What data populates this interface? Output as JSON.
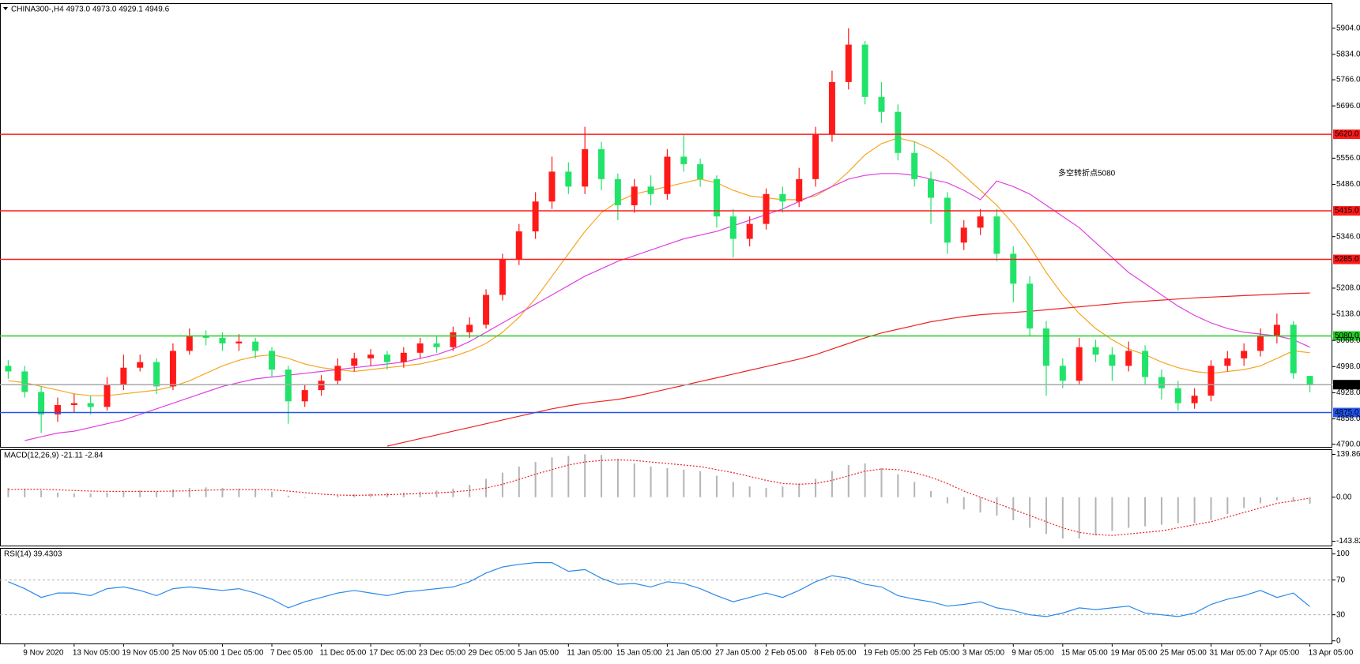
{
  "chart_data": [
    {
      "type": "candlestick",
      "title": "CHINA300-,H4  4973.0 4973.0 4929.1 4949.6",
      "annotation": "多空转折点5080",
      "annotation_color": "#ff1a1a",
      "up_color": "#ff1a1a",
      "down_color": "#22e36a",
      "ylim": [
        4783,
        5969
      ],
      "yticks": [
        {
          "value": 4790,
          "label": "4790.0"
        },
        {
          "value": 4858,
          "label": "4858.0"
        },
        {
          "value": 4928,
          "label": "4928.0"
        },
        {
          "value": 4998,
          "label": "4998.0"
        },
        {
          "value": 5068,
          "label": "5068.0"
        },
        {
          "value": 5138,
          "label": "5138.0"
        },
        {
          "value": 5208,
          "label": "5208.0"
        },
        {
          "value": 5346,
          "label": "5346.0"
        },
        {
          "value": 5486,
          "label": "5486.0"
        },
        {
          "value": 5556,
          "label": "5556.0"
        },
        {
          "value": 5696,
          "label": "5696.0"
        },
        {
          "value": 5766,
          "label": "5766.0"
        },
        {
          "value": 5834,
          "label": "5834.0"
        },
        {
          "value": 5904,
          "label": "5904.0"
        }
      ],
      "levels": [
        {
          "value": 5620,
          "label": "5620.0",
          "color": "#ff1a1a",
          "box": "#ff1a1a"
        },
        {
          "value": 5415,
          "label": "5415.0",
          "color": "#ff1a1a",
          "box": "#ff1a1a"
        },
        {
          "value": 5285,
          "label": "5285.0",
          "color": "#ff1a1a",
          "box": "#ff1a1a"
        },
        {
          "value": 5080,
          "label": "5080.0",
          "color": "#22cc22",
          "box": "#22cc22"
        },
        {
          "value": 4875,
          "label": "4875.0",
          "color": "#2255ee",
          "box": "#2255ee"
        },
        {
          "value": 4949.6,
          "label": "4949.6",
          "color": "#a8a8a8",
          "box": "#000000"
        }
      ],
      "categories": [
        null,
        "9 Nov 2020",
        null,
        null,
        "13 Nov 05:00",
        null,
        null,
        "19 Nov 05:00",
        null,
        null,
        "25 Nov 05:00",
        null,
        null,
        "1 Dec 05:00",
        null,
        null,
        "7 Dec 05:00",
        null,
        null,
        "11 Dec 05:00",
        null,
        null,
        "17 Dec 05:00",
        null,
        null,
        "23 Dec 05:00",
        null,
        null,
        "29 Dec 05:00",
        null,
        null,
        "5 Jan 05:00",
        null,
        null,
        "11 Jan 05:00",
        null,
        null,
        "15 Jan 05:00",
        null,
        null,
        "21 Jan 05:00",
        null,
        null,
        "27 Jan 05:00",
        null,
        null,
        "2 Feb 05:00",
        null,
        null,
        "8 Feb 05:00",
        null,
        null,
        "19 Feb 05:00",
        null,
        null,
        "25 Feb 05:00",
        null,
        null,
        "3 Mar 05:00",
        null,
        null,
        "9 Mar 05:00",
        null,
        null,
        "15 Mar 05:00",
        null,
        null,
        "19 Mar 05:00",
        null,
        null,
        "25 Mar 05:00",
        null,
        null,
        "31 Mar 05:00",
        null,
        null,
        "7 Apr 05:00",
        null,
        null,
        "13 Apr 05:00"
      ],
      "open": [
        5000,
        4985,
        4930,
        4870,
        4895,
        4900,
        4890,
        4950,
        4995,
        5010,
        4945,
        5040,
        5080,
        5075,
        5060,
        5065,
        5040,
        4990,
        4905,
        4935,
        4960,
        5000,
        5020,
        5030,
        5010,
        5035,
        5060,
        5050,
        5090,
        5110,
        5190,
        5285,
        5360,
        5440,
        5520,
        5480,
        5580,
        5500,
        5430,
        5480,
        5460,
        5560,
        5540,
        5500,
        5400,
        5340,
        5380,
        5460,
        5440,
        5500,
        5620,
        5760,
        5860,
        5720,
        5680,
        5570,
        5500,
        5450,
        5330,
        5370,
        5400,
        5300,
        5220,
        5100,
        5000,
        4960,
        5050,
        5030,
        5000,
        5040,
        4970,
        4940,
        4900,
        4920,
        5000,
        5020,
        5040,
        5080,
        5110,
        4973
      ],
      "high": [
        5015,
        5000,
        4945,
        4915,
        4925,
        4920,
        4970,
        5030,
        5030,
        5020,
        5060,
        5100,
        5095,
        5090,
        5085,
        5075,
        5050,
        5000,
        4950,
        4975,
        5020,
        5035,
        5045,
        5040,
        5050,
        5075,
        5080,
        5105,
        5130,
        5205,
        5300,
        5380,
        5465,
        5560,
        5545,
        5640,
        5600,
        5515,
        5500,
        5510,
        5580,
        5620,
        5555,
        5510,
        5420,
        5400,
        5475,
        5480,
        5530,
        5640,
        5790,
        5904,
        5870,
        5760,
        5700,
        5600,
        5520,
        5465,
        5390,
        5420,
        5420,
        5320,
        5240,
        5120,
        5020,
        5075,
        5070,
        5050,
        5065,
        5055,
        4990,
        4960,
        4940,
        5015,
        5040,
        5060,
        5100,
        5140,
        5120,
        4973
      ],
      "low": [
        4965,
        4915,
        4820,
        4850,
        4875,
        4870,
        4880,
        4935,
        4985,
        4925,
        4935,
        5030,
        5055,
        5040,
        5040,
        5020,
        4970,
        4845,
        4890,
        4920,
        4950,
        4985,
        5000,
        4990,
        4995,
        5020,
        5035,
        5040,
        5075,
        5100,
        5175,
        5270,
        5340,
        5420,
        5460,
        5460,
        5470,
        5390,
        5410,
        5430,
        5445,
        5520,
        5480,
        5370,
        5290,
        5320,
        5365,
        5410,
        5425,
        5480,
        5600,
        5740,
        5700,
        5650,
        5550,
        5480,
        5380,
        5300,
        5310,
        5350,
        5280,
        5170,
        5080,
        4920,
        4940,
        4950,
        5010,
        4960,
        4985,
        4950,
        4910,
        4880,
        4885,
        4905,
        4985,
        5000,
        5025,
        5060,
        4965,
        4929.1
      ],
      "close": [
        4985,
        4930,
        4870,
        4895,
        4900,
        4890,
        4950,
        4995,
        5010,
        4945,
        5040,
        5080,
        5075,
        5060,
        5065,
        5040,
        4990,
        4905,
        4935,
        4960,
        5000,
        5020,
        5030,
        5010,
        5035,
        5060,
        5050,
        5090,
        5110,
        5190,
        5285,
        5360,
        5440,
        5520,
        5480,
        5580,
        5500,
        5430,
        5480,
        5460,
        5560,
        5540,
        5500,
        5400,
        5340,
        5380,
        5460,
        5440,
        5500,
        5620,
        5760,
        5860,
        5720,
        5680,
        5570,
        5500,
        5450,
        5330,
        5370,
        5400,
        5300,
        5220,
        5100,
        5000,
        4960,
        5050,
        5030,
        5000,
        5040,
        4970,
        4940,
        4900,
        4920,
        5000,
        5020,
        5040,
        5080,
        5110,
        4980,
        4949.6
      ],
      "lines": [
        {
          "color": "#f5a623",
          "values": [
            4960,
            4955,
            4945,
            4935,
            4925,
            4920,
            4920,
            4925,
            4930,
            4935,
            4945,
            4960,
            4980,
            5000,
            5015,
            5025,
            5030,
            5020,
            5005,
            4995,
            4990,
            4985,
            4990,
            4995,
            5000,
            5005,
            5015,
            5025,
            5040,
            5060,
            5090,
            5130,
            5180,
            5240,
            5300,
            5360,
            5410,
            5440,
            5460,
            5470,
            5480,
            5490,
            5500,
            5490,
            5470,
            5455,
            5450,
            5445,
            5445,
            5455,
            5480,
            5520,
            5565,
            5595,
            5610,
            5600,
            5580,
            5550,
            5510,
            5470,
            5430,
            5380,
            5320,
            5250,
            5190,
            5140,
            5100,
            5070,
            5045,
            5030,
            5010,
            4995,
            4985,
            4980,
            4985,
            4990,
            5000,
            5020,
            5040,
            5035
          ]
        },
        {
          "color": "#e040e0",
          "values": [
            null,
            4800,
            4810,
            4820,
            4825,
            4835,
            4845,
            4855,
            4870,
            4885,
            4900,
            4915,
            4930,
            4945,
            4955,
            4965,
            4970,
            4975,
            4980,
            4985,
            4990,
            4995,
            5000,
            5005,
            5010,
            5020,
            5030,
            5045,
            5065,
            5090,
            5115,
            5140,
            5165,
            5190,
            5215,
            5240,
            5260,
            5280,
            5295,
            5310,
            5325,
            5340,
            5350,
            5360,
            5375,
            5390,
            5405,
            5420,
            5440,
            5460,
            5480,
            5500,
            5510,
            5515,
            5515,
            5510,
            5500,
            5490,
            5470,
            5445,
            5495,
            5480,
            5460,
            5430,
            5400,
            5370,
            5330,
            5290,
            5250,
            5220,
            5190,
            5160,
            5135,
            5115,
            5100,
            5090,
            5085,
            5080,
            5070,
            5050
          ]
        },
        {
          "color": "#ee2222",
          "values": [
            null,
            null,
            null,
            null,
            null,
            null,
            null,
            null,
            null,
            null,
            null,
            null,
            null,
            null,
            null,
            null,
            null,
            null,
            null,
            null,
            null,
            null,
            null,
            4785,
            4795,
            4805,
            4815,
            4825,
            4835,
            4845,
            4855,
            4865,
            4875,
            4885,
            4893,
            4900,
            4905,
            4910,
            4918,
            4928,
            4938,
            4948,
            4958,
            4968,
            4978,
            4988,
            4998,
            5008,
            5018,
            5030,
            5045,
            5060,
            5075,
            5088,
            5098,
            5108,
            5118,
            5125,
            5132,
            5137,
            5140,
            5143,
            5146,
            5150,
            5154,
            5158,
            5162,
            5166,
            5170,
            5173,
            5176,
            5179,
            5182,
            5184,
            5186,
            5188,
            5190,
            5192,
            5194,
            5195
          ]
        }
      ]
    },
    {
      "type": "macd",
      "title": "MACD(12,26,9) -21.11 -2.84",
      "ylim": [
        -158,
        154
      ],
      "yticks": [
        {
          "value": 139.86,
          "label": "139.86"
        },
        {
          "value": 0,
          "label": "0.00"
        },
        {
          "value": -143.82,
          "label": "-143.82"
        }
      ],
      "histogram": {
        "color": "#b4b4b4",
        "values": [
          30,
          28,
          22,
          15,
          12,
          12,
          15,
          20,
          22,
          18,
          25,
          30,
          32,
          30,
          28,
          25,
          18,
          5,
          -2,
          0,
          5,
          10,
          12,
          14,
          15,
          18,
          22,
          28,
          40,
          60,
          80,
          100,
          115,
          130,
          135,
          140,
          138,
          125,
          110,
          100,
          95,
          90,
          85,
          70,
          50,
          35,
          30,
          35,
          45,
          60,
          85,
          105,
          110,
          95,
          75,
          50,
          20,
          -20,
          -40,
          -50,
          -60,
          -75,
          -100,
          -120,
          -135,
          -135,
          -125,
          -110,
          -100,
          -95,
          -90,
          -85,
          -85,
          -75,
          -55,
          -35,
          -20,
          -10,
          -15,
          -21.11
        ]
      },
      "signal": {
        "color": "#ee2222",
        "values": [
          25,
          26,
          26,
          24,
          22,
          20,
          19,
          19,
          19,
          19,
          20,
          21,
          23,
          24,
          25,
          25,
          24,
          20,
          15,
          10,
          7,
          6,
          7,
          8,
          10,
          12,
          14,
          17,
          22,
          30,
          42,
          58,
          75,
          90,
          105,
          115,
          120,
          122,
          120,
          115,
          110,
          105,
          100,
          90,
          80,
          68,
          55,
          45,
          42,
          45,
          55,
          70,
          85,
          92,
          90,
          80,
          65,
          45,
          20,
          0,
          -20,
          -40,
          -60,
          -80,
          -100,
          -115,
          -122,
          -125,
          -120,
          -115,
          -110,
          -100,
          -90,
          -80,
          -65,
          -50,
          -35,
          -20,
          -12,
          -2.84
        ]
      }
    },
    {
      "type": "rsi",
      "title": "RSI(14) 39.4303",
      "ylim": [
        -3,
        106
      ],
      "yticks": [
        100,
        70,
        30,
        0
      ],
      "dashed_levels": [
        70,
        30
      ],
      "color": "#2a8ae8",
      "values": [
        68,
        60,
        50,
        55,
        55,
        52,
        60,
        62,
        58,
        52,
        60,
        62,
        60,
        58,
        60,
        55,
        48,
        38,
        45,
        50,
        55,
        58,
        55,
        52,
        56,
        58,
        60,
        62,
        68,
        78,
        85,
        88,
        90,
        90,
        80,
        82,
        72,
        65,
        66,
        62,
        68,
        66,
        60,
        52,
        45,
        50,
        55,
        50,
        58,
        68,
        75,
        72,
        65,
        62,
        52,
        48,
        45,
        40,
        42,
        45,
        38,
        35,
        30,
        28,
        32,
        38,
        36,
        38,
        40,
        32,
        30,
        28,
        32,
        42,
        48,
        52,
        58,
        50,
        55,
        39.4303
      ]
    }
  ]
}
